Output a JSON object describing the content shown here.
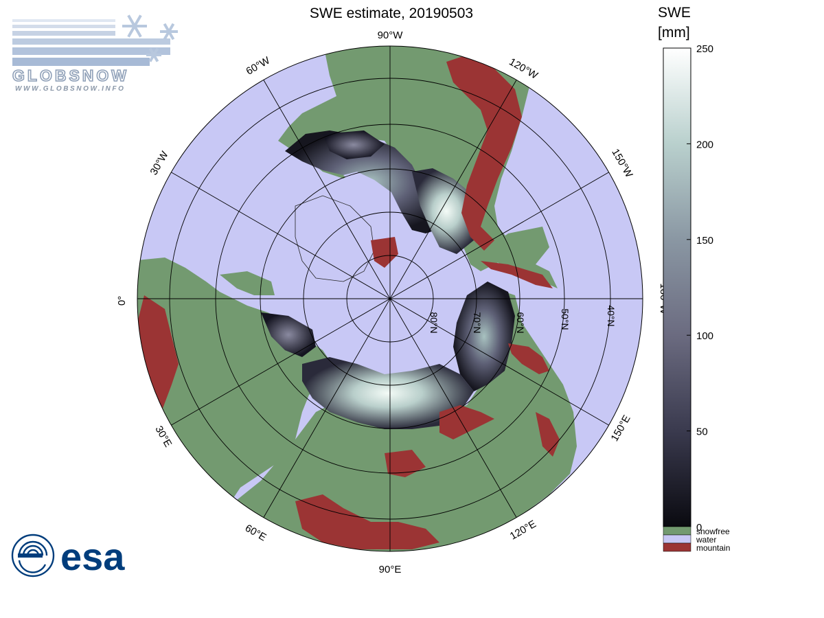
{
  "title": "SWE estimate, 20190503",
  "colorbar": {
    "title_line1": "SWE",
    "title_line2": "[mm]",
    "ticks": [
      "250",
      "200",
      "150",
      "100",
      "50",
      "0"
    ],
    "tick_values": [
      250,
      200,
      150,
      100,
      50,
      0
    ],
    "range": [
      0,
      250
    ],
    "gradient_colors": [
      "#0a0a10",
      "#3a3a4e",
      "#6b6b80",
      "#8a97a3",
      "#b9d0cd",
      "#ffffff"
    ],
    "legend": [
      {
        "label": "snowfree",
        "color": "#739a70"
      },
      {
        "label": "water",
        "color": "#c8c8f5"
      },
      {
        "label": "mountain",
        "color": "#9b3434"
      }
    ]
  },
  "map": {
    "projection": "north polar stereographic",
    "longitude_labels": {
      "top": "90°W",
      "bottom": "90°E",
      "left": "0°",
      "right": "180°W",
      "upper_left_1": "60°W",
      "upper_left_2": "30°W",
      "upper_right_1": "120°W",
      "upper_right_2": "150°W",
      "lower_left_1": "30°E",
      "lower_left_2": "60°E",
      "lower_right_1": "120°E",
      "lower_right_2": "150°E"
    },
    "latitude_labels": [
      "80°N",
      "70°N",
      "60°N",
      "50°N",
      "40°N"
    ],
    "colors": {
      "water": "#c8c8f5",
      "snowfree": "#739a70",
      "mountain": "#9b3434"
    }
  },
  "logos": {
    "globsnow_text": "GLOBSNOW",
    "globsnow_url": "WWW.GLOBSNOW.INFO",
    "esa_text": "esa"
  }
}
